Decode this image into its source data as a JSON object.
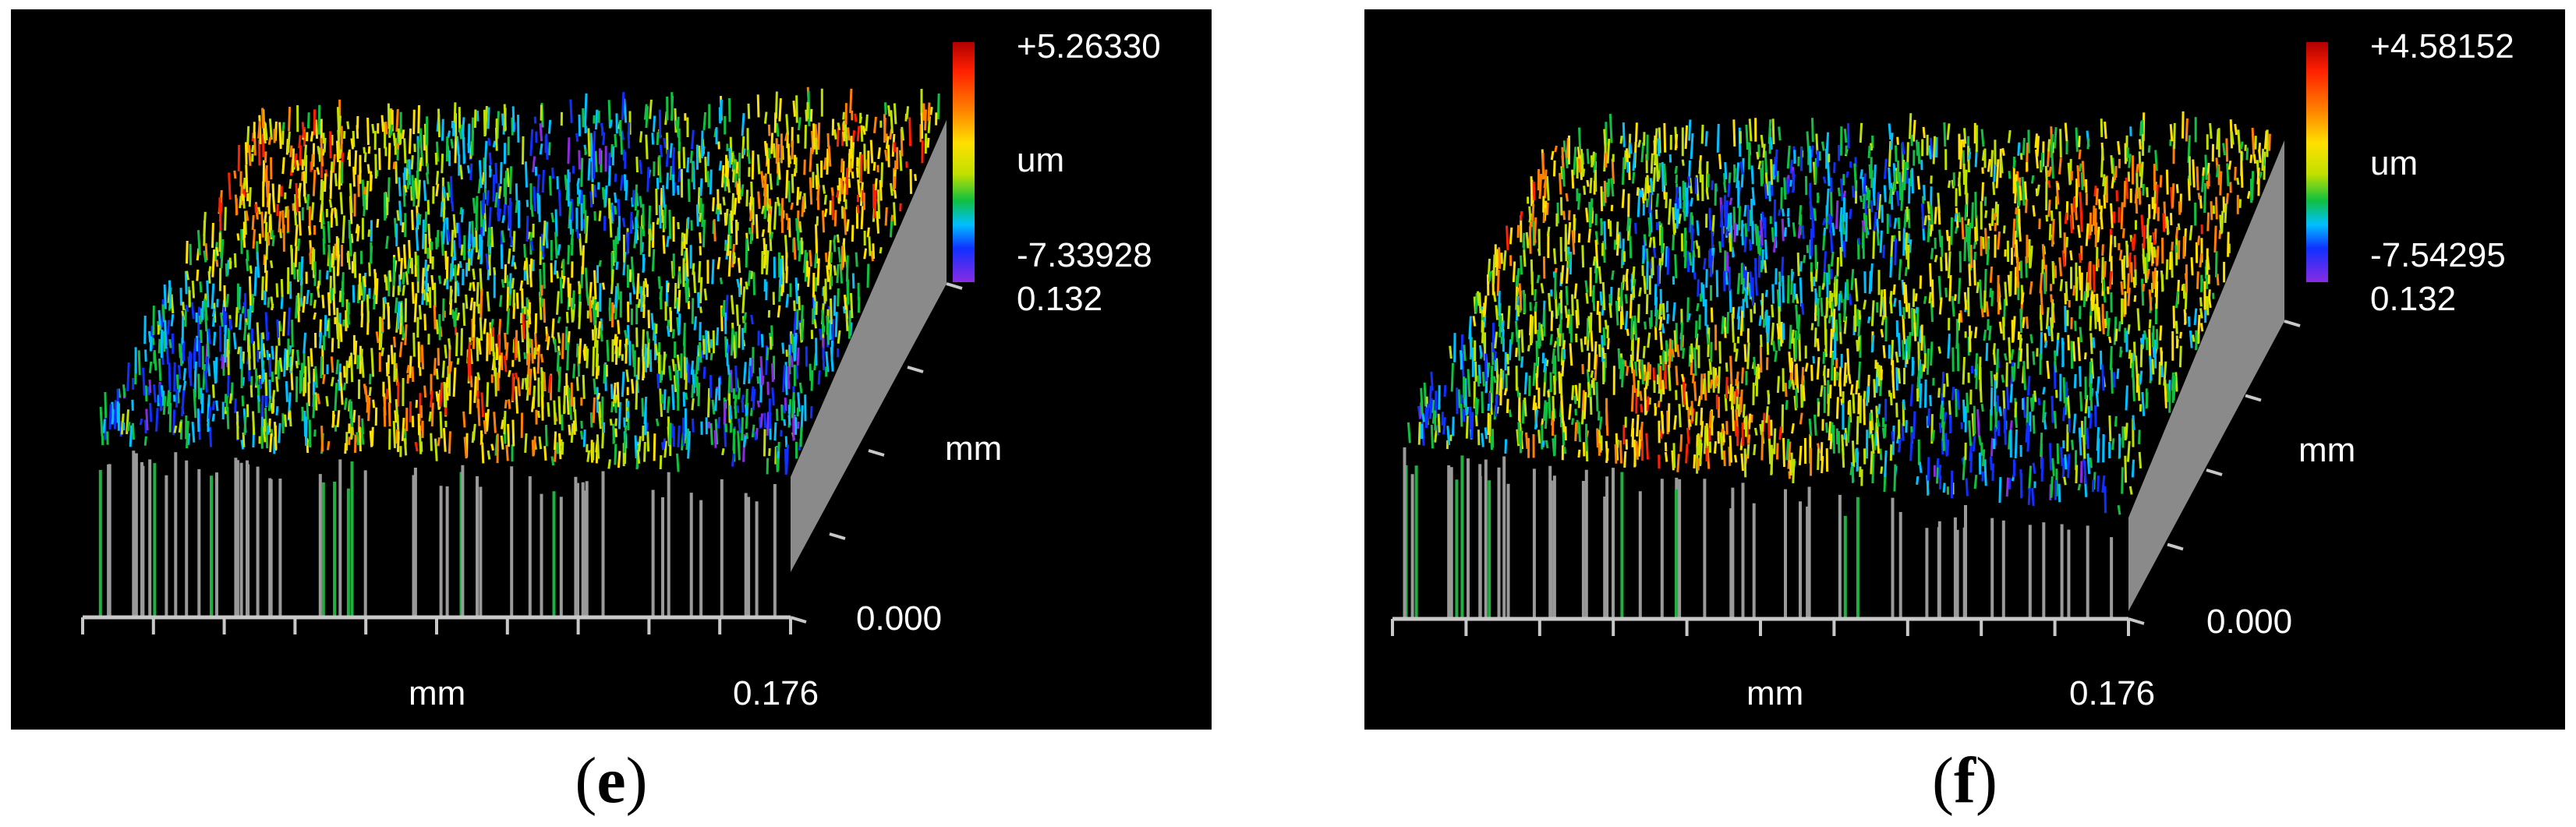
{
  "chart_data": [
    {
      "type": "heatmap",
      "panel": "e",
      "caption": "e",
      "z_max_label": "+5.26330",
      "z_min_label": "-7.33928",
      "z_unit": "um",
      "y_max_label": "0.132",
      "y_min_label": "0.000",
      "y_unit": "mm",
      "x_unit": "mm",
      "x_max_label": "0.176",
      "z_range": [
        -7.33928,
        5.2633
      ],
      "x_range": [
        0,
        0.176
      ],
      "y_range": [
        0,
        0.132
      ],
      "colorscale": [
        "#8a2be2",
        "#1030ff",
        "#00c0ff",
        "#10c040",
        "#c0e000",
        "#ffe000",
        "#ff8000",
        "#ff2000",
        "#b00000"
      ]
    },
    {
      "type": "heatmap",
      "panel": "f",
      "caption": "f",
      "z_max_label": "+4.58152",
      "z_min_label": "-7.54295",
      "z_unit": "um",
      "y_max_label": "0.132",
      "y_min_label": "0.000",
      "y_unit": "mm",
      "x_unit": "mm",
      "x_max_label": "0.176",
      "z_range": [
        -7.54295,
        4.58152
      ],
      "x_range": [
        0,
        0.176
      ],
      "y_range": [
        0,
        0.132
      ],
      "colorscale": [
        "#8a2be2",
        "#1030ff",
        "#00c0ff",
        "#10c040",
        "#c0e000",
        "#ffe000",
        "#ff8000",
        "#ff2000",
        "#b00000"
      ]
    }
  ],
  "captions": {
    "e": "e",
    "f": "f"
  }
}
